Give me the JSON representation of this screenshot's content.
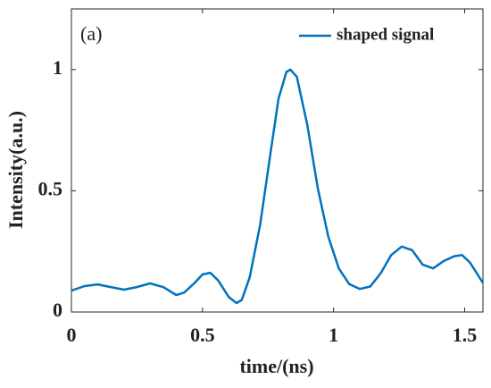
{
  "chart_data": {
    "type": "line",
    "annotation": "(a)",
    "xlabel": "time/(ns)",
    "ylabel": "Intensity(a.u.)",
    "xlim": [
      0,
      1.57
    ],
    "ylim": [
      0,
      1.25
    ],
    "xticks": [
      0,
      0.5,
      1,
      1.5
    ],
    "yticks": [
      0,
      0.5,
      1
    ],
    "legend": "upper right",
    "x": [
      0,
      0.05,
      0.1,
      0.15,
      0.2,
      0.25,
      0.3,
      0.35,
      0.4,
      0.43,
      0.47,
      0.5,
      0.53,
      0.56,
      0.6,
      0.63,
      0.65,
      0.68,
      0.72,
      0.76,
      0.79,
      0.82,
      0.835,
      0.86,
      0.9,
      0.94,
      0.98,
      1.02,
      1.06,
      1.1,
      1.14,
      1.18,
      1.22,
      1.26,
      1.3,
      1.34,
      1.38,
      1.42,
      1.46,
      1.49,
      1.52,
      1.57
    ],
    "series": [
      {
        "name": "shaped signal",
        "color": "#0072bd",
        "values": [
          0.088,
          0.107,
          0.114,
          0.103,
          0.092,
          0.103,
          0.118,
          0.103,
          0.07,
          0.08,
          0.12,
          0.155,
          0.162,
          0.13,
          0.062,
          0.037,
          0.05,
          0.143,
          0.36,
          0.66,
          0.88,
          0.99,
          1.0,
          0.97,
          0.77,
          0.51,
          0.31,
          0.18,
          0.115,
          0.095,
          0.105,
          0.16,
          0.235,
          0.27,
          0.255,
          0.195,
          0.18,
          0.21,
          0.23,
          0.235,
          0.205,
          0.12
        ]
      }
    ]
  }
}
